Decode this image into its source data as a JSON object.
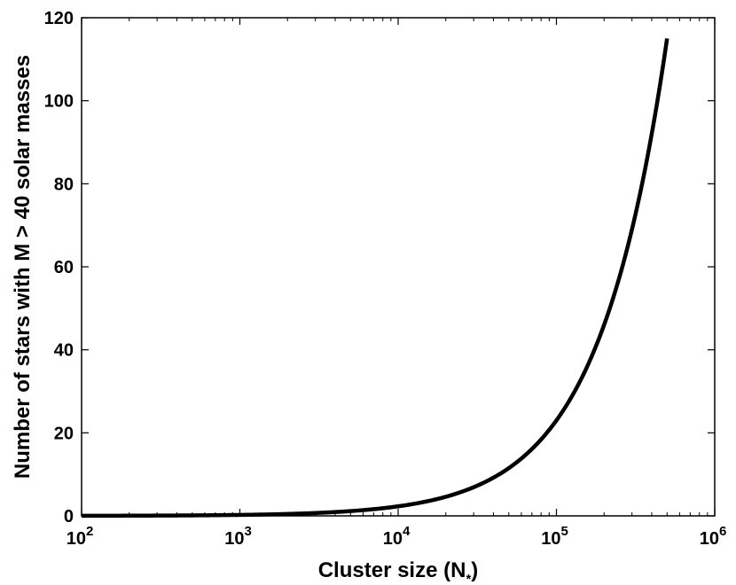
{
  "chart_data": {
    "type": "line",
    "title": "",
    "xlabel": "Cluster size (N",
    "xlabel_subscript": "*",
    "xlabel_close": ")",
    "ylabel": "Number of stars with M > 40 solar masses",
    "x_scale": "log",
    "xlim": [
      100,
      1000000
    ],
    "ylim": [
      0,
      120
    ],
    "grid": false,
    "legend": "none",
    "x_ticks": [
      {
        "base": "10",
        "exp": "2",
        "value": 100
      },
      {
        "base": "10",
        "exp": "3",
        "value": 1000
      },
      {
        "base": "10",
        "exp": "4",
        "value": 10000
      },
      {
        "base": "10",
        "exp": "5",
        "value": 100000
      },
      {
        "base": "10",
        "exp": "6",
        "value": 1000000
      }
    ],
    "y_ticks": [
      {
        "label": "0",
        "value": 0
      },
      {
        "label": "20",
        "value": 20
      },
      {
        "label": "40",
        "value": 40
      },
      {
        "label": "60",
        "value": 60
      },
      {
        "label": "80",
        "value": 80
      },
      {
        "label": "100",
        "value": 100
      },
      {
        "label": "120",
        "value": 120
      }
    ],
    "series": [
      {
        "color": "#000000",
        "x": [
          100,
          300,
          1000,
          3000,
          10000,
          20000,
          50000,
          100000,
          200000,
          300000,
          500000
        ],
        "y": [
          0.02,
          0.07,
          0.23,
          0.69,
          2.3,
          4.6,
          11.5,
          23,
          46,
          69,
          115
        ]
      }
    ]
  }
}
